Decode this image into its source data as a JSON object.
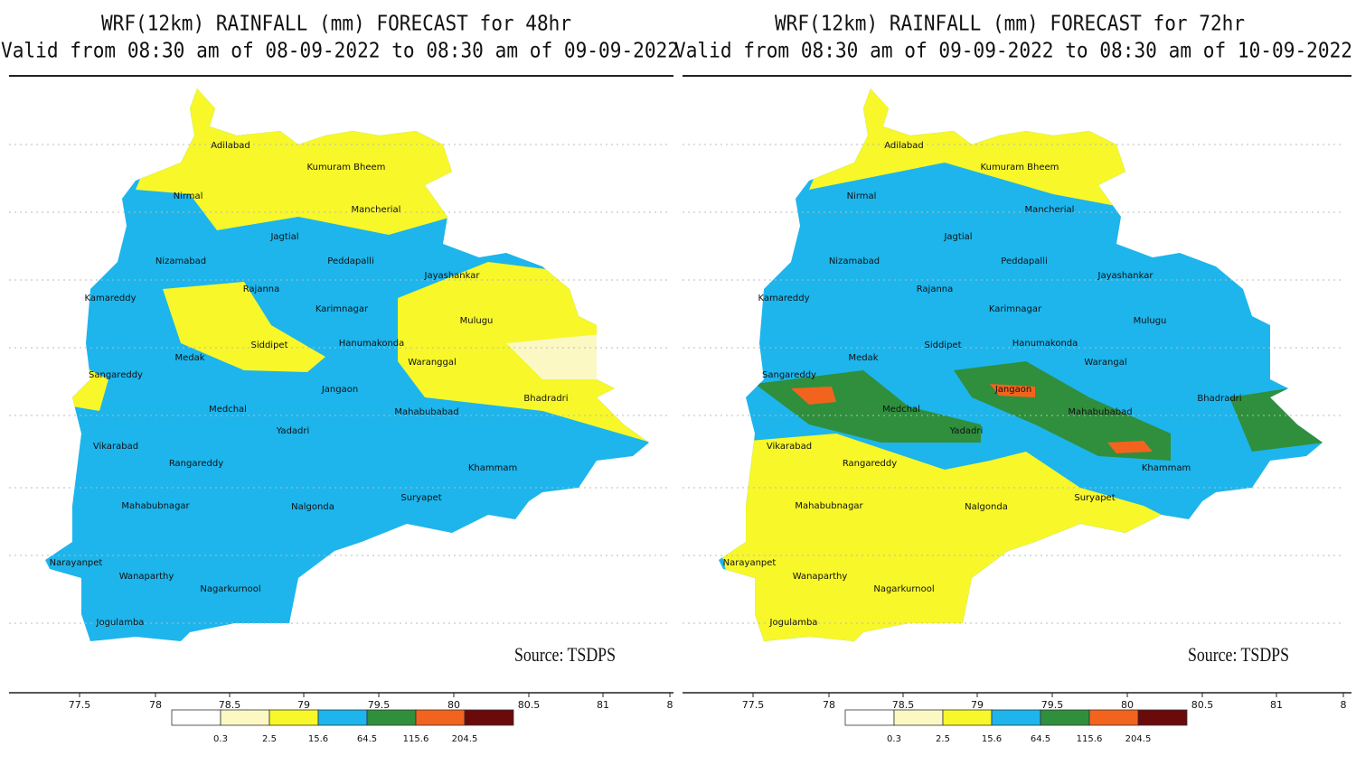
{
  "panels": [
    {
      "title": "WRF(12km) RAINFALL (mm) FORECAST for 48hr",
      "subtitle": "Valid from 08:30 am of 08-09-2022 to 08:30 am of 09-09-2022",
      "districts": [
        "Adilabad",
        "Kumuram Bheem",
        "Nirmal",
        "Mancherial",
        "Jagtial",
        "Nizamabad",
        "Peddapalli",
        "Jayashankar",
        "Kamareddy",
        "Rajanna",
        "Karimnagar",
        "Mulugu",
        "Siddipet",
        "Hanumakonda",
        "Medak",
        "Waranggal",
        "Sangareddy",
        "Jangaon",
        "Bhadradri",
        "Medchal",
        "Mahabubabad",
        "Yadadri",
        "Vikarabad",
        "Rangareddy",
        "Khammam",
        "Suryapet",
        "Mahabubnagar",
        "Nalgonda",
        "Narayanpet",
        "Wanaparthy",
        "Nagarkurnool",
        "Jogulamba"
      ],
      "xticks": [
        77.5,
        78,
        78.5,
        79,
        79.5,
        80,
        80.5,
        81,
        "8"
      ],
      "legend": {
        "levels": [
          0.3,
          2.5,
          15.6,
          64.5,
          115.6,
          204.5
        ],
        "colors": [
          "#ffffff",
          "#fbf8c4",
          "#f7f72a",
          "#1db5ec",
          "#2f8f3c",
          "#f2641e",
          "#6b0a0a"
        ]
      },
      "source": "Source: TSDPS"
    },
    {
      "title": "WRF(12km) RAINFALL (mm) FORECAST for 72hr",
      "subtitle": "Valid from 08:30 am of 09-09-2022 to 08:30 am of 10-09-2022",
      "districts": [
        "Adilabad",
        "Kumuram Bheem",
        "Nirmal",
        "Mancherial",
        "Jagtial",
        "Nizamabad",
        "Peddapalli",
        "Jayashankar",
        "Kamareddy",
        "Rajanna",
        "Karimnagar",
        "Mulugu",
        "Siddipet",
        "Hanumakonda",
        "Medak",
        "Warangal",
        "Sangareddy",
        "Jangaon",
        "Bhadradri",
        "Medchal",
        "Mahabubabad",
        "Yadadri",
        "Vikarabad",
        "Rangareddy",
        "Khammam",
        "Suryapet",
        "Mahabubnagar",
        "Nalgonda",
        "Narayanpet",
        "Wanaparthy",
        "Nagarkurnool",
        "Jogulamba"
      ],
      "xticks": [
        77.5,
        78,
        78.5,
        79,
        79.5,
        80,
        80.5,
        81,
        "8"
      ],
      "legend": {
        "levels": [
          0.3,
          2.5,
          15.6,
          64.5,
          115.6,
          204.5
        ],
        "colors": [
          "#ffffff",
          "#fbf8c4",
          "#f7f72a",
          "#1db5ec",
          "#2f8f3c",
          "#f2641e",
          "#6b0a0a"
        ]
      },
      "source": "Source: TSDPS"
    }
  ]
}
